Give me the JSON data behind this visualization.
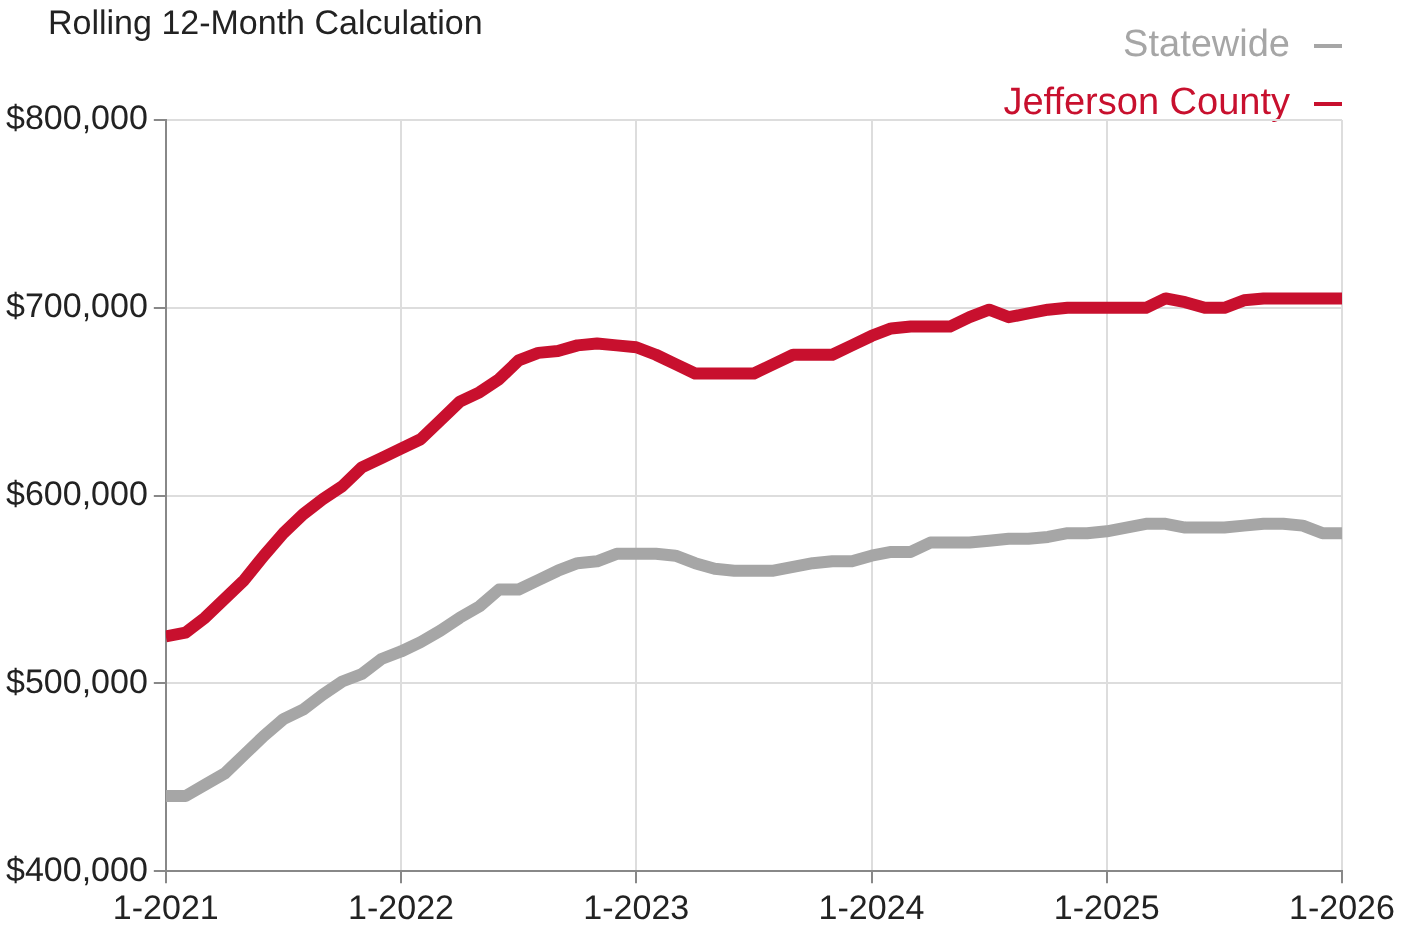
{
  "chart_data": {
    "type": "line",
    "title": "Rolling 12-Month Calculation",
    "x": [
      "2021-01",
      "2021-02",
      "2021-03",
      "2021-04",
      "2021-05",
      "2021-06",
      "2021-07",
      "2021-08",
      "2021-09",
      "2021-10",
      "2021-11",
      "2021-12",
      "2022-01",
      "2022-02",
      "2022-03",
      "2022-04",
      "2022-05",
      "2022-06",
      "2022-07",
      "2022-08",
      "2022-09",
      "2022-10",
      "2022-11",
      "2022-12",
      "2023-01",
      "2023-02",
      "2023-03",
      "2023-04",
      "2023-05",
      "2023-06",
      "2023-07",
      "2023-08",
      "2023-09",
      "2023-10",
      "2023-11",
      "2023-12",
      "2024-01",
      "2024-02",
      "2024-03",
      "2024-04",
      "2024-05",
      "2024-06",
      "2024-07",
      "2024-08",
      "2024-09",
      "2024-10",
      "2024-11",
      "2024-12",
      "2025-01",
      "2025-02",
      "2025-03",
      "2025-04",
      "2025-05",
      "2025-06",
      "2025-07",
      "2025-08",
      "2025-09",
      "2025-10",
      "2025-11",
      "2025-12",
      "2026-01"
    ],
    "series": [
      {
        "name": "Statewide",
        "color": "#a6a6a6",
        "values": [
          440000,
          440000,
          446000,
          452000,
          462000,
          472000,
          481000,
          486000,
          494000,
          501000,
          505000,
          513000,
          517000,
          522000,
          528000,
          535000,
          541000,
          550000,
          550000,
          555000,
          560000,
          564000,
          565000,
          569000,
          569000,
          569000,
          568000,
          564000,
          561000,
          560000,
          560000,
          560000,
          562000,
          564000,
          565000,
          565000,
          568000,
          570000,
          570000,
          575000,
          575000,
          575000,
          576000,
          577000,
          577000,
          578000,
          580000,
          580000,
          581000,
          583000,
          585000,
          585000,
          583000,
          583000,
          583000,
          584000,
          585000,
          585000,
          584000,
          580000,
          580000
        ]
      },
      {
        "name": "Jefferson County",
        "color": "#c8102e",
        "values": [
          525000,
          527000,
          535000,
          545000,
          555000,
          568000,
          580000,
          590000,
          598000,
          605000,
          615000,
          620000,
          625000,
          630000,
          640000,
          650000,
          655000,
          662000,
          672000,
          676000,
          677000,
          680000,
          681000,
          680000,
          679000,
          675000,
          670000,
          665000,
          665000,
          665000,
          665000,
          670000,
          675000,
          675000,
          675000,
          680000,
          685000,
          689000,
          690000,
          690000,
          690000,
          695000,
          699000,
          695000,
          697000,
          699000,
          700000,
          700000,
          700000,
          700000,
          700000,
          705000,
          703000,
          700000,
          700000,
          704000,
          705000,
          705000,
          705000,
          705000,
          705000
        ]
      }
    ],
    "xlim": [
      "2021-01",
      "2026-01"
    ],
    "xticks": [
      {
        "value": "2021-01",
        "label": "1-2021"
      },
      {
        "value": "2022-01",
        "label": "1-2022"
      },
      {
        "value": "2023-01",
        "label": "1-2023"
      },
      {
        "value": "2024-01",
        "label": "1-2024"
      },
      {
        "value": "2025-01",
        "label": "1-2025"
      },
      {
        "value": "2026-01",
        "label": "1-2026"
      }
    ],
    "ylim": [
      400000,
      800000
    ],
    "yticks": [
      {
        "value": 400000,
        "label": "$400,000"
      },
      {
        "value": 500000,
        "label": "$500,000"
      },
      {
        "value": 600000,
        "label": "$600,000"
      },
      {
        "value": 700000,
        "label": "$700,000"
      },
      {
        "value": 800000,
        "label": "$800,000"
      }
    ],
    "grid": true,
    "legend": "top right",
    "marker": "none",
    "line_style": "solid"
  }
}
